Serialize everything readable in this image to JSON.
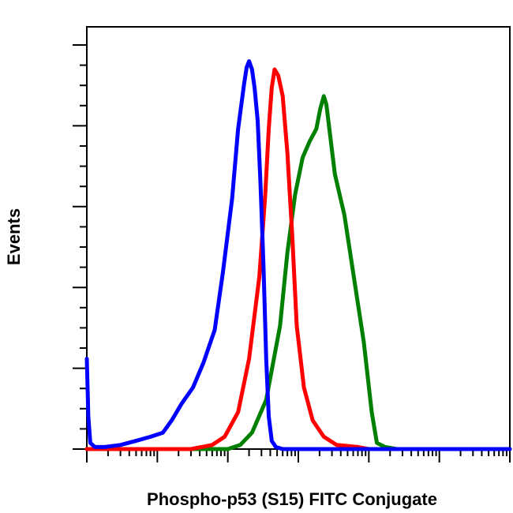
{
  "chart_data": {
    "type": "line",
    "title": "",
    "xlabel": "Phospho-p53 (S15) FITC Conjugate",
    "ylabel": "Events",
    "x_scale": "log",
    "xlim": [
      0.1,
      100000
    ],
    "ylim": [
      0,
      100
    ],
    "grid": false,
    "legend": "none",
    "series": [
      {
        "color": "#0000ff",
        "x": [
          0.1,
          0.105,
          0.112,
          0.13,
          0.18,
          0.3,
          0.5,
          0.8,
          1.2,
          1.6,
          2.2,
          3.2,
          4.5,
          6.5,
          8.5,
          11.5,
          14,
          17,
          18.5,
          20,
          22,
          24,
          26.5,
          29,
          32,
          35,
          38,
          42,
          48,
          60,
          70,
          100,
          100000
        ],
        "y": [
          22,
          8,
          1.5,
          0.5,
          0.5,
          1,
          2,
          3,
          4,
          7,
          11,
          15,
          21,
          29,
          43,
          61,
          78,
          89,
          93,
          94.5,
          92.5,
          88,
          80,
          65,
          45,
          22,
          8,
          2,
          0.5,
          0,
          0,
          0,
          0
        ]
      },
      {
        "color": "#ff0000",
        "x": [
          0.1,
          3,
          6,
          9,
          14,
          20,
          28,
          34,
          38,
          42,
          46,
          52,
          60,
          70,
          82,
          95,
          120,
          160,
          230,
          350,
          700,
          1000,
          100000
        ],
        "y": [
          0,
          0,
          1,
          3,
          9,
          22,
          42,
          62,
          78,
          88,
          92.5,
          91,
          86,
          72,
          52,
          30,
          15,
          7,
          3,
          1,
          0.5,
          0,
          0
        ]
      },
      {
        "color": "#008000",
        "x": [
          0.1,
          10,
          15,
          22,
          35,
          55,
          70,
          90,
          115,
          145,
          180,
          205,
          230,
          250,
          285,
          330,
          450,
          600,
          850,
          1100,
          1300,
          1700,
          2500,
          100000
        ],
        "y": [
          0,
          0,
          1,
          4,
          12,
          30,
          48,
          62,
          71,
          75,
          78,
          83,
          86,
          84,
          76,
          67,
          57,
          43,
          26,
          9,
          1.5,
          0.5,
          0,
          0
        ]
      }
    ]
  }
}
